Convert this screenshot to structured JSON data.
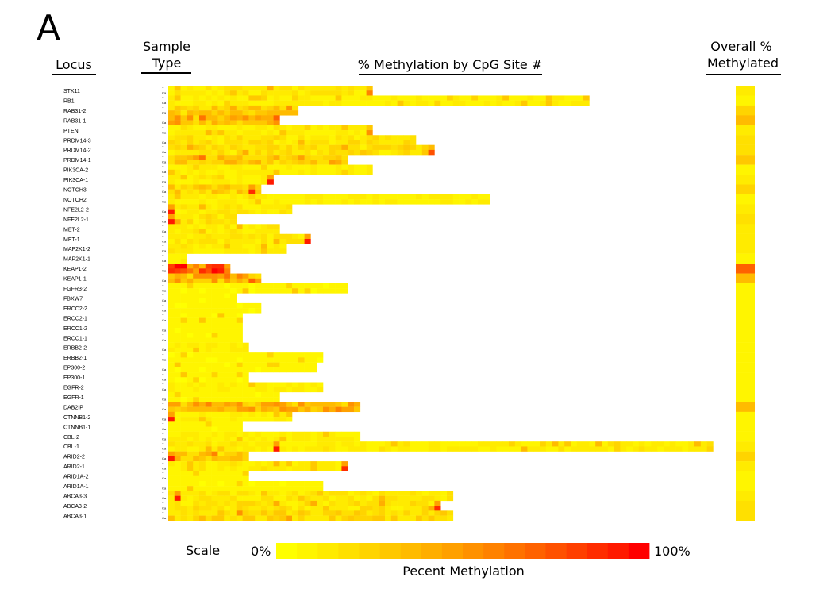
{
  "panel_label": "A",
  "headers": {
    "locus": "Locus",
    "sample_type_line1": "Sample",
    "sample_type_line2": "Type",
    "methylation_by_site": "% Methylation by CpG Site #",
    "overall_line1": "Overall %",
    "overall_line2": "Methylated"
  },
  "scale": {
    "label": "Scale",
    "min_label": "0%",
    "max_label": "100%",
    "caption": "Pecent Methylation",
    "colors": [
      "#ffff00",
      "#fff500",
      "#ffeb00",
      "#ffe000",
      "#ffd400",
      "#ffc800",
      "#ffbb00",
      "#ffae00",
      "#ffa000",
      "#ff9100",
      "#ff8200",
      "#ff7200",
      "#ff6200",
      "#ff5100",
      "#ff3f00",
      "#ff2c00",
      "#ff1a00",
      "#ff0000"
    ]
  },
  "chart_data": {
    "type": "heatmap",
    "value_range": [
      0,
      100
    ],
    "row_sample_labels": [
      "T",
      "Ca"
    ],
    "loci": [
      {
        "name": "STK11",
        "sites": 33,
        "overall": 12
      },
      {
        "name": "RB1",
        "sites": 68,
        "overall": 8
      },
      {
        "name": "RAB31-2",
        "sites": 21,
        "overall": 25
      },
      {
        "name": "RAB31-1",
        "sites": 18,
        "overall": 35
      },
      {
        "name": "PTEN",
        "sites": 33,
        "overall": 10
      },
      {
        "name": "PRDM14-3",
        "sites": 40,
        "overall": 15
      },
      {
        "name": "PRDM14-2",
        "sites": 43,
        "overall": 18
      },
      {
        "name": "PRDM14-1",
        "sites": 29,
        "overall": 30
      },
      {
        "name": "PIK3CA-2",
        "sites": 33,
        "overall": 8
      },
      {
        "name": "PIK3CA-1",
        "sites": 17,
        "overall": 10
      },
      {
        "name": "NOTCH3",
        "sites": 15,
        "overall": 25
      },
      {
        "name": "NOTCH2",
        "sites": 52,
        "overall": 8
      },
      {
        "name": "NFE2L2-2",
        "sites": 20,
        "overall": 12
      },
      {
        "name": "NFE2L2-1",
        "sites": 11,
        "overall": 15
      },
      {
        "name": "MET-2",
        "sites": 18,
        "overall": 10
      },
      {
        "name": "MET-1",
        "sites": 23,
        "overall": 12
      },
      {
        "name": "MAP2K1-2",
        "sites": 19,
        "overall": 10
      },
      {
        "name": "MAP2K1-1",
        "sites": 3,
        "overall": 8
      },
      {
        "name": "KEAP1-2",
        "sites": 10,
        "overall": 70
      },
      {
        "name": "KEAP1-1",
        "sites": 15,
        "overall": 35
      },
      {
        "name": "FGFR3-2",
        "sites": 29,
        "overall": 5
      },
      {
        "name": "FBXW7",
        "sites": 11,
        "overall": 5
      },
      {
        "name": "ERCC2-2",
        "sites": 15,
        "overall": 5
      },
      {
        "name": "ERCC2-1",
        "sites": 12,
        "overall": 5
      },
      {
        "name": "ERCC1-2",
        "sites": 12,
        "overall": 5
      },
      {
        "name": "ERCC1-1",
        "sites": 12,
        "overall": 5
      },
      {
        "name": "ERBB2-2",
        "sites": 13,
        "overall": 8
      },
      {
        "name": "ERBB2-1",
        "sites": 25,
        "overall": 5
      },
      {
        "name": "EP300-2",
        "sites": 24,
        "overall": 5
      },
      {
        "name": "EP300-1",
        "sites": 13,
        "overall": 5
      },
      {
        "name": "EGFR-2",
        "sites": 25,
        "overall": 8
      },
      {
        "name": "EGFR-1",
        "sites": 18,
        "overall": 5
      },
      {
        "name": "DAB2IP",
        "sites": 31,
        "overall": 35
      },
      {
        "name": "CTNNB1-2",
        "sites": 20,
        "overall": 8
      },
      {
        "name": "CTNNB1-1",
        "sites": 12,
        "overall": 5
      },
      {
        "name": "CBL-2",
        "sites": 31,
        "overall": 8
      },
      {
        "name": "CBL-1",
        "sites": 88,
        "overall": 10
      },
      {
        "name": "ARID2-2",
        "sites": 13,
        "overall": 25
      },
      {
        "name": "ARID2-1",
        "sites": 29,
        "overall": 10
      },
      {
        "name": "ARID1A-2",
        "sites": 13,
        "overall": 5
      },
      {
        "name": "ARID1A-1",
        "sites": 25,
        "overall": 5
      },
      {
        "name": "ABCA3-3",
        "sites": 46,
        "overall": 12
      },
      {
        "name": "ABCA3-2",
        "sites": 44,
        "overall": 15
      },
      {
        "name": "ABCA3-1",
        "sites": 46,
        "overall": 20
      }
    ],
    "hotspots": [
      {
        "locus": "STK11",
        "site": 32,
        "value": 60
      },
      {
        "locus": "PTEN",
        "site": 32,
        "value": 55
      },
      {
        "locus": "PRDM14-2",
        "site": 42,
        "value": 75
      },
      {
        "locus": "PIK3CA-1",
        "site": 16,
        "value": 95
      },
      {
        "locus": "NOTCH3",
        "site": 13,
        "value": 90
      },
      {
        "locus": "NFE2L2-2",
        "site": 0,
        "value": 95
      },
      {
        "locus": "NFE2L2-1",
        "site": 0,
        "value": 95
      },
      {
        "locus": "MET-1",
        "site": 22,
        "value": 95
      },
      {
        "locus": "KEAP1-2",
        "site": 0,
        "value": 90
      },
      {
        "locus": "CTNNB1-2",
        "site": 0,
        "value": 95
      },
      {
        "locus": "CBL-1",
        "site": 17,
        "value": 95
      },
      {
        "locus": "ARID2-2",
        "site": 0,
        "value": 95
      },
      {
        "locus": "ARID2-1",
        "site": 28,
        "value": 90
      },
      {
        "locus": "ABCA3-3",
        "site": 1,
        "value": 95
      },
      {
        "locus": "ABCA3-2",
        "site": 43,
        "value": 90
      }
    ]
  }
}
